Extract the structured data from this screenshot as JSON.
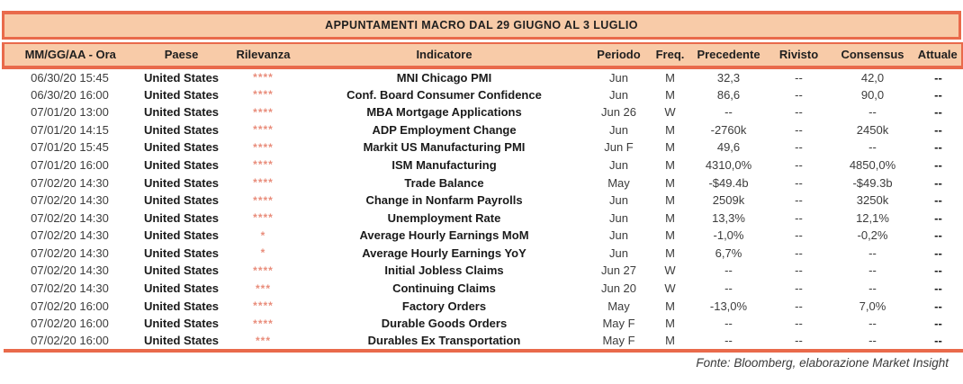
{
  "title": "APPUNTAMENTI MACRO DAL 29 GIUGNO AL 3 LUGLIO",
  "columns": {
    "datetime": "MM/GG/AA - Ora",
    "country": "Paese",
    "relevance": "Rilevanza",
    "indicator": "Indicatore",
    "period": "Periodo",
    "freq": "Freq.",
    "previous": "Precedente",
    "revised": "Rivisto",
    "consensus": "Consensus",
    "actual": "Attuale"
  },
  "rows": [
    {
      "datetime": "06/30/20 15:45",
      "country": "United States",
      "relevance": "****",
      "indicator": "MNI Chicago PMI",
      "period": "Jun",
      "freq": "M",
      "previous": "32,3",
      "revised": "--",
      "consensus": "42,0",
      "actual": "--"
    },
    {
      "datetime": "06/30/20 16:00",
      "country": "United States",
      "relevance": "****",
      "indicator": "Conf. Board Consumer Confidence",
      "period": "Jun",
      "freq": "M",
      "previous": "86,6",
      "revised": "--",
      "consensus": "90,0",
      "actual": "--"
    },
    {
      "datetime": "07/01/20 13:00",
      "country": "United States",
      "relevance": "****",
      "indicator": "MBA Mortgage Applications",
      "period": "Jun 26",
      "freq": "W",
      "previous": "--",
      "revised": "--",
      "consensus": "--",
      "actual": "--"
    },
    {
      "datetime": "07/01/20 14:15",
      "country": "United States",
      "relevance": "****",
      "indicator": "ADP Employment Change",
      "period": "Jun",
      "freq": "M",
      "previous": "-2760k",
      "revised": "--",
      "consensus": "2450k",
      "actual": "--"
    },
    {
      "datetime": "07/01/20 15:45",
      "country": "United States",
      "relevance": "****",
      "indicator": "Markit US Manufacturing PMI",
      "period": "Jun F",
      "freq": "M",
      "previous": "49,6",
      "revised": "--",
      "consensus": "--",
      "actual": "--"
    },
    {
      "datetime": "07/01/20 16:00",
      "country": "United States",
      "relevance": "****",
      "indicator": "ISM Manufacturing",
      "period": "Jun",
      "freq": "M",
      "previous": "4310,0%",
      "revised": "--",
      "consensus": "4850,0%",
      "actual": "--"
    },
    {
      "datetime": "07/02/20 14:30",
      "country": "United States",
      "relevance": "****",
      "indicator": "Trade Balance",
      "period": "May",
      "freq": "M",
      "previous": "-$49.4b",
      "revised": "--",
      "consensus": "-$49.3b",
      "actual": "--"
    },
    {
      "datetime": "07/02/20 14:30",
      "country": "United States",
      "relevance": "****",
      "indicator": "Change in Nonfarm Payrolls",
      "period": "Jun",
      "freq": "M",
      "previous": "2509k",
      "revised": "--",
      "consensus": "3250k",
      "actual": "--"
    },
    {
      "datetime": "07/02/20 14:30",
      "country": "United States",
      "relevance": "****",
      "indicator": "Unemployment Rate",
      "period": "Jun",
      "freq": "M",
      "previous": "13,3%",
      "revised": "--",
      "consensus": "12,1%",
      "actual": "--"
    },
    {
      "datetime": "07/02/20 14:30",
      "country": "United States",
      "relevance": "*",
      "indicator": "Average Hourly Earnings MoM",
      "period": "Jun",
      "freq": "M",
      "previous": "-1,0%",
      "revised": "--",
      "consensus": "-0,2%",
      "actual": "--"
    },
    {
      "datetime": "07/02/20 14:30",
      "country": "United States",
      "relevance": "*",
      "indicator": "Average Hourly Earnings YoY",
      "period": "Jun",
      "freq": "M",
      "previous": "6,7%",
      "revised": "--",
      "consensus": "--",
      "actual": "--"
    },
    {
      "datetime": "07/02/20 14:30",
      "country": "United States",
      "relevance": "****",
      "indicator": "Initial Jobless Claims",
      "period": "Jun 27",
      "freq": "W",
      "previous": "--",
      "revised": "--",
      "consensus": "--",
      "actual": "--"
    },
    {
      "datetime": "07/02/20 14:30",
      "country": "United States",
      "relevance": "***",
      "indicator": "Continuing Claims",
      "period": "Jun 20",
      "freq": "W",
      "previous": "--",
      "revised": "--",
      "consensus": "--",
      "actual": "--"
    },
    {
      "datetime": "07/02/20 16:00",
      "country": "United States",
      "relevance": "****",
      "indicator": "Factory Orders",
      "period": "May",
      "freq": "M",
      "previous": "-13,0%",
      "revised": "--",
      "consensus": "7,0%",
      "actual": "--"
    },
    {
      "datetime": "07/02/20 16:00",
      "country": "United States",
      "relevance": "****",
      "indicator": "Durable Goods Orders",
      "period": "May F",
      "freq": "M",
      "previous": "--",
      "revised": "--",
      "consensus": "--",
      "actual": "--"
    },
    {
      "datetime": "07/02/20 16:00",
      "country": "United States",
      "relevance": "***",
      "indicator": "Durables Ex Transportation",
      "period": "May F",
      "freq": "M",
      "previous": "--",
      "revised": "--",
      "consensus": "--",
      "actual": "--"
    }
  ],
  "footer": "Fonte: Bloomberg, elaborazione Market Insight",
  "colors": {
    "peach_fill": "#F8CBA8",
    "salmon_border": "#E96A4B",
    "star_color": "#E98D7B",
    "text_dark": "#1A1A1A",
    "text_mid": "#3C3C3C"
  }
}
